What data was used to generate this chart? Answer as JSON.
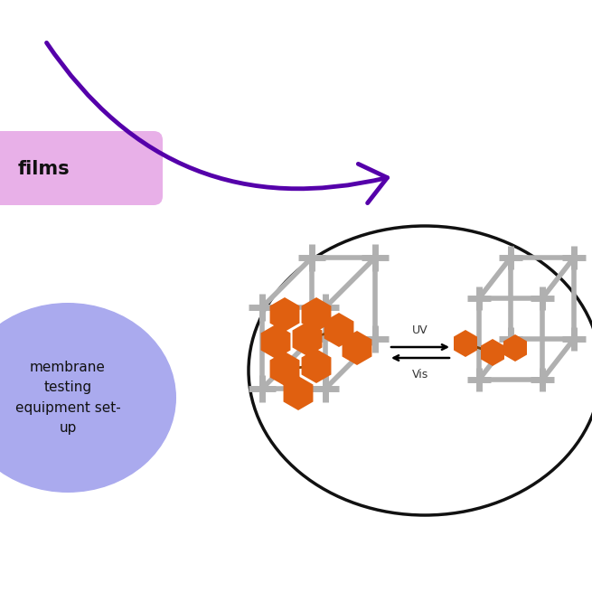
{
  "bg_color": "#ffffff",
  "purple_arrow_color": "#5500aa",
  "pink_box_color": "#e8b0e8",
  "pink_box_text": "films",
  "pink_box_text_color": "#111111",
  "blue_ellipse_color": "#aaaaee",
  "blue_ellipse_text": "membrane\ntesting\nequipment set-\nup",
  "blue_ellipse_text_color": "#111111",
  "big_ellipse_color": "#111111",
  "orange_color": "#e06010",
  "grid_color": "#b0b0b0",
  "uv_vis_text_color": "#333333"
}
